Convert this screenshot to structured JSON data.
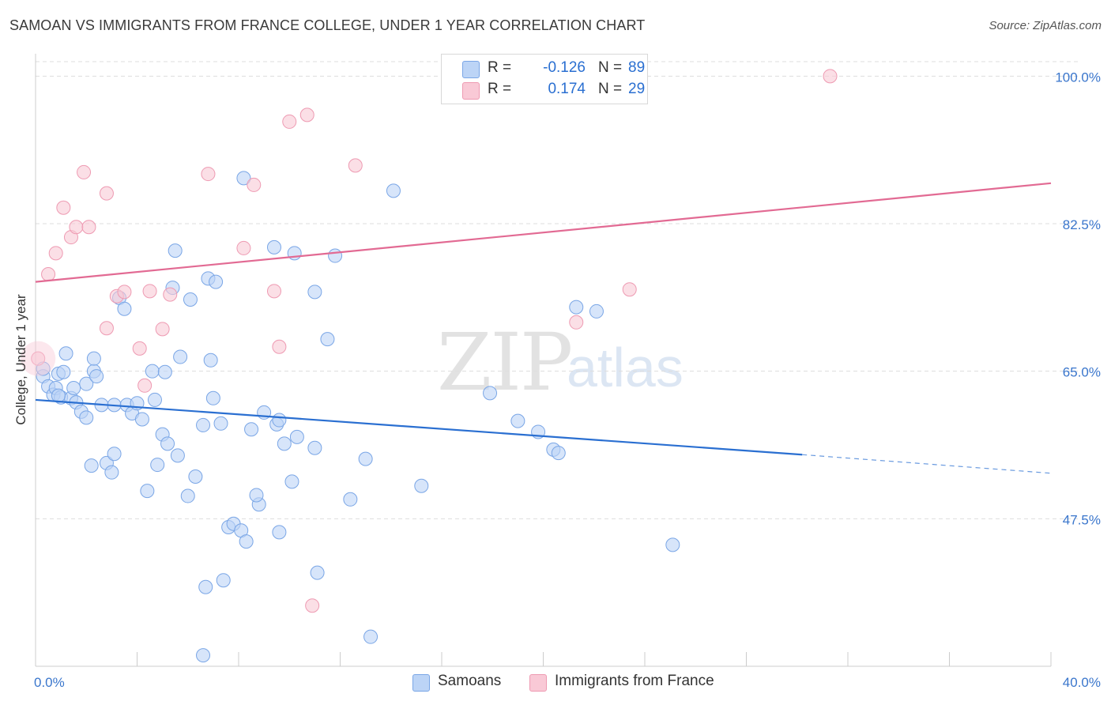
{
  "header": {
    "title": "SAMOAN VS IMMIGRANTS FROM FRANCE COLLEGE, UNDER 1 YEAR CORRELATION CHART",
    "source": "Source: ZipAtlas.com"
  },
  "watermark": {
    "zip": "ZIP",
    "atlas": "atlas"
  },
  "legend": {
    "rows": [
      {
        "r_label": "R =",
        "r_value": "-0.126",
        "n_label": "N =",
        "n_value": "89",
        "color": "#bcd4f6",
        "border": "#7aa6e6"
      },
      {
        "r_label": "R =",
        "r_value": "0.174",
        "n_label": "N =",
        "n_value": "29",
        "color": "#f9c9d6",
        "border": "#ee9ab2"
      }
    ]
  },
  "bottom_legend": {
    "items": [
      {
        "label": "Samoans",
        "color": "#bcd4f6",
        "border": "#7aa6e6"
      },
      {
        "label": "Immigrants from France",
        "color": "#f9c9d6",
        "border": "#ee9ab2"
      }
    ]
  },
  "chart_data": {
    "type": "scatter",
    "title": "SAMOAN VS IMMIGRANTS FROM FRANCE COLLEGE, UNDER 1 YEAR CORRELATION CHART",
    "xlabel": "",
    "ylabel": "College, Under 1 year",
    "xlim": [
      0,
      40
    ],
    "ylim": [
      30.0,
      102.0
    ],
    "x_tick_labels": [
      "0.0%",
      "40.0%"
    ],
    "y_ticks": [
      47.5,
      65.0,
      82.5,
      100.0
    ],
    "y_tick_labels": [
      "47.5%",
      "65.0%",
      "82.5%",
      "100.0%"
    ],
    "grid": true,
    "series": [
      {
        "name": "Samoans",
        "color": "#7aa6e6",
        "fill": "#bcd4f6",
        "trend": {
          "x0": 0.0,
          "y0": 61.6,
          "x1": 30.2,
          "y1": 55.1,
          "dash_to_x": 40.0,
          "dash_to_y": 52.9,
          "color": "#2a6fd1"
        },
        "points": [
          [
            0.3,
            64.4
          ],
          [
            0.3,
            65.3
          ],
          [
            0.5,
            63.2
          ],
          [
            0.7,
            62.2
          ],
          [
            0.8,
            63.0
          ],
          [
            0.9,
            64.7
          ],
          [
            1.0,
            61.9
          ],
          [
            1.1,
            64.9
          ],
          [
            1.2,
            67.1
          ],
          [
            1.4,
            61.8
          ],
          [
            1.6,
            61.3
          ],
          [
            1.8,
            60.2
          ],
          [
            2.0,
            63.5
          ],
          [
            2.3,
            65.0
          ],
          [
            2.3,
            66.5
          ],
          [
            2.6,
            61.0
          ],
          [
            2.8,
            54.1
          ],
          [
            3.0,
            53.0
          ],
          [
            3.1,
            61.0
          ],
          [
            3.6,
            61.0
          ],
          [
            3.8,
            60.0
          ],
          [
            4.0,
            61.2
          ],
          [
            4.2,
            59.3
          ],
          [
            4.4,
            50.8
          ],
          [
            4.7,
            61.6
          ],
          [
            4.8,
            53.9
          ],
          [
            5.0,
            57.5
          ],
          [
            5.2,
            56.4
          ],
          [
            5.6,
            55.0
          ],
          [
            5.7,
            66.7
          ],
          [
            6.0,
            50.2
          ],
          [
            6.3,
            52.5
          ],
          [
            6.6,
            58.6
          ],
          [
            6.9,
            66.3
          ],
          [
            7.0,
            61.8
          ],
          [
            7.3,
            58.8
          ],
          [
            7.6,
            46.5
          ],
          [
            7.8,
            46.9
          ],
          [
            8.1,
            46.1
          ],
          [
            8.3,
            44.8
          ],
          [
            8.5,
            58.1
          ],
          [
            8.8,
            49.2
          ],
          [
            9.0,
            60.1
          ],
          [
            9.5,
            58.7
          ],
          [
            9.6,
            59.2
          ],
          [
            9.8,
            56.4
          ],
          [
            10.1,
            51.9
          ],
          [
            10.3,
            57.2
          ],
          [
            11.0,
            55.9
          ],
          [
            11.1,
            41.1
          ],
          [
            11.5,
            68.8
          ],
          [
            12.4,
            49.8
          ],
          [
            13.0,
            54.6
          ],
          [
            13.2,
            33.5
          ],
          [
            14.1,
            86.4
          ],
          [
            15.2,
            51.4
          ],
          [
            17.9,
            62.4
          ],
          [
            19.0,
            59.1
          ],
          [
            19.8,
            57.8
          ],
          [
            20.4,
            55.7
          ],
          [
            20.6,
            55.3
          ],
          [
            21.3,
            72.6
          ],
          [
            22.1,
            72.1
          ],
          [
            25.1,
            44.4
          ],
          [
            3.3,
            73.7
          ],
          [
            3.5,
            72.4
          ],
          [
            4.6,
            65.0
          ],
          [
            5.1,
            64.9
          ],
          [
            5.4,
            74.9
          ],
          [
            6.1,
            73.5
          ],
          [
            6.8,
            76.0
          ],
          [
            7.1,
            75.6
          ],
          [
            8.2,
            87.9
          ],
          [
            9.4,
            79.7
          ],
          [
            10.2,
            79.0
          ],
          [
            11.0,
            74.4
          ],
          [
            11.8,
            78.7
          ],
          [
            5.5,
            79.3
          ],
          [
            2.4,
            64.4
          ],
          [
            1.5,
            63.0
          ],
          [
            0.9,
            62.1
          ],
          [
            2.0,
            59.5
          ],
          [
            8.7,
            50.3
          ],
          [
            9.6,
            45.9
          ],
          [
            6.7,
            39.4
          ],
          [
            7.4,
            40.2
          ],
          [
            6.6,
            31.3
          ],
          [
            3.1,
            55.2
          ],
          [
            2.2,
            53.8
          ]
        ]
      },
      {
        "name": "Immigrants from France",
        "color": "#ee9ab2",
        "fill": "#f9c9d6",
        "trend": {
          "x0": 0.0,
          "y0": 75.6,
          "x1": 40.0,
          "y1": 87.3,
          "color": "#e26a93"
        },
        "points": [
          [
            0.1,
            66.5
          ],
          [
            0.5,
            76.5
          ],
          [
            0.8,
            79.0
          ],
          [
            1.1,
            84.4
          ],
          [
            1.4,
            80.9
          ],
          [
            1.6,
            82.1
          ],
          [
            1.9,
            88.6
          ],
          [
            2.1,
            82.1
          ],
          [
            2.8,
            70.1
          ],
          [
            2.8,
            86.1
          ],
          [
            3.2,
            73.9
          ],
          [
            3.5,
            74.4
          ],
          [
            4.1,
            67.7
          ],
          [
            4.3,
            63.3
          ],
          [
            4.5,
            74.5
          ],
          [
            5.0,
            70.0
          ],
          [
            5.3,
            74.1
          ],
          [
            6.8,
            88.4
          ],
          [
            8.2,
            79.6
          ],
          [
            8.6,
            87.1
          ],
          [
            9.4,
            74.5
          ],
          [
            9.6,
            67.9
          ],
          [
            10.0,
            94.6
          ],
          [
            10.7,
            95.4
          ],
          [
            10.9,
            37.2
          ],
          [
            12.6,
            89.4
          ],
          [
            21.3,
            70.8
          ],
          [
            23.4,
            74.7
          ],
          [
            31.3,
            100.0
          ]
        ]
      }
    ]
  }
}
